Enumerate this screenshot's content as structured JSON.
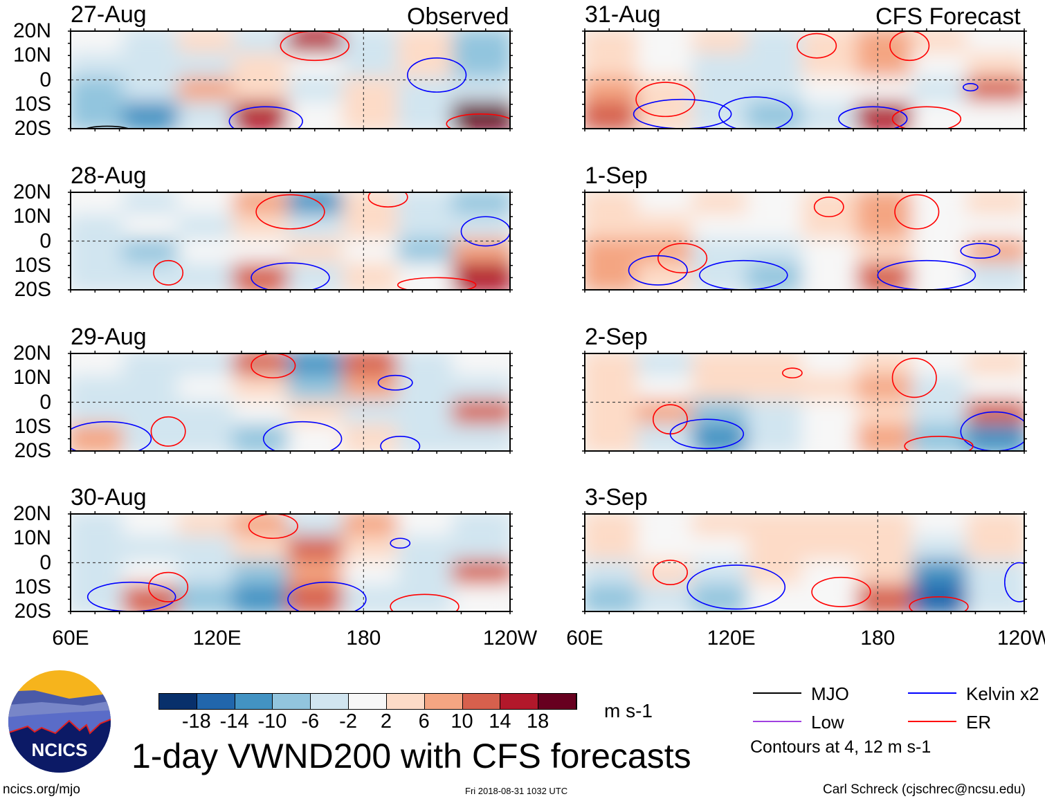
{
  "header": {
    "left_label": "Observed",
    "right_label": "CFS Forecast"
  },
  "chart_data": {
    "type": "heatmap",
    "title": "1-day VWND200 with CFS forecasts",
    "units": "m s-1",
    "lat_ticks": [
      "20N",
      "10N",
      "0",
      "10S",
      "20S"
    ],
    "lon_ticks": [
      "60E",
      "120E",
      "180",
      "120W"
    ],
    "lon_range": [
      60,
      240
    ],
    "lat_range": [
      -20,
      20
    ],
    "grid_lons": [
      71,
      94,
      116,
      139,
      161,
      184,
      206,
      229
    ],
    "grid_lats": [
      15,
      5,
      -5,
      -15
    ],
    "panels": [
      {
        "date": "27-Aug",
        "col": 0,
        "row": 0,
        "values": [
          [
            0,
            -4,
            3,
            -3,
            14,
            -4,
            3,
            -8
          ],
          [
            -3,
            -6,
            -4,
            4,
            0,
            -6,
            2,
            -8
          ],
          [
            -8,
            -6,
            6,
            4,
            -4,
            3,
            -4,
            -6
          ],
          [
            -10,
            -12,
            -4,
            14,
            -2,
            2,
            -4,
            18
          ]
        ],
        "contours": [
          {
            "type": "ER",
            "lon": 160,
            "lat": 14,
            "rlon": 14,
            "rlat": 6
          },
          {
            "type": "Kelvin",
            "lon": 210,
            "lat": 2,
            "rlon": 12,
            "rlat": 7
          },
          {
            "type": "Kelvin",
            "lon": 140,
            "lat": -17,
            "rlon": 15,
            "rlat": 6
          },
          {
            "type": "ER",
            "lon": 228,
            "lat": -18,
            "rlon": 14,
            "rlat": 4
          },
          {
            "type": "MJO",
            "lon": 75,
            "lat": -21,
            "rlon": 10,
            "rlat": 2
          }
        ]
      },
      {
        "date": "28-Aug",
        "col": 0,
        "row": 1,
        "values": [
          [
            -2,
            -3,
            0,
            8,
            -14,
            4,
            -4,
            -8
          ],
          [
            -4,
            -2,
            -3,
            4,
            -6,
            2,
            -4,
            -4
          ],
          [
            -6,
            -8,
            -2,
            0,
            3,
            -2,
            -8,
            6
          ],
          [
            -6,
            -4,
            -4,
            10,
            -4,
            3,
            -2,
            14
          ]
        ],
        "contours": [
          {
            "type": "ER",
            "lon": 150,
            "lat": 12,
            "rlon": 14,
            "rlat": 7
          },
          {
            "type": "ER",
            "lon": 190,
            "lat": 18,
            "rlon": 8,
            "rlat": 4
          },
          {
            "type": "Kelvin",
            "lon": 230,
            "lat": 4,
            "rlon": 10,
            "rlat": 6
          },
          {
            "type": "Kelvin",
            "lon": 150,
            "lat": -15,
            "rlon": 16,
            "rlat": 6
          },
          {
            "type": "ER",
            "lon": 100,
            "lat": -13,
            "rlon": 6,
            "rlat": 5
          },
          {
            "type": "ER",
            "lon": 210,
            "lat": -18,
            "rlon": 16,
            "rlat": 3
          }
        ]
      },
      {
        "date": "29-Aug",
        "col": 0,
        "row": 2,
        "values": [
          [
            -2,
            -4,
            -3,
            10,
            -12,
            10,
            -4,
            -2
          ],
          [
            -3,
            -4,
            -2,
            4,
            -8,
            6,
            -4,
            -4
          ],
          [
            -6,
            -4,
            -6,
            -2,
            4,
            -4,
            -4,
            10
          ],
          [
            8,
            -4,
            -6,
            -8,
            -2,
            2,
            -6,
            -4
          ]
        ],
        "contours": [
          {
            "type": "ER",
            "lon": 143,
            "lat": 15,
            "rlon": 9,
            "rlat": 5
          },
          {
            "type": "Kelvin",
            "lon": 193,
            "lat": 8,
            "rlon": 7,
            "rlat": 3
          },
          {
            "type": "Kelvin",
            "lon": 75,
            "lat": -15,
            "rlon": 18,
            "rlat": 7
          },
          {
            "type": "ER",
            "lon": 100,
            "lat": -12,
            "rlon": 7,
            "rlat": 6
          },
          {
            "type": "Kelvin",
            "lon": 155,
            "lat": -15,
            "rlon": 16,
            "rlat": 7
          },
          {
            "type": "Kelvin",
            "lon": 195,
            "lat": -18,
            "rlon": 8,
            "rlat": 4
          }
        ]
      },
      {
        "date": "30-Aug",
        "col": 0,
        "row": 3,
        "values": [
          [
            -3,
            -2,
            4,
            8,
            -4,
            6,
            -2,
            -3
          ],
          [
            -4,
            -4,
            -4,
            2,
            10,
            2,
            -4,
            -4
          ],
          [
            -6,
            -2,
            -4,
            -8,
            8,
            -2,
            -4,
            10
          ],
          [
            -6,
            10,
            -8,
            -14,
            12,
            -6,
            -4,
            -2
          ]
        ],
        "contours": [
          {
            "type": "ER",
            "lon": 143,
            "lat": 15,
            "rlon": 10,
            "rlat": 5
          },
          {
            "type": "Kelvin",
            "lon": 195,
            "lat": 8,
            "rlon": 4,
            "rlat": 2
          },
          {
            "type": "Kelvin",
            "lon": 85,
            "lat": -14,
            "rlon": 18,
            "rlat": 6
          },
          {
            "type": "ER",
            "lon": 100,
            "lat": -10,
            "rlon": 8,
            "rlat": 6
          },
          {
            "type": "Kelvin",
            "lon": 165,
            "lat": -15,
            "rlon": 16,
            "rlat": 7
          },
          {
            "type": "ER",
            "lon": 205,
            "lat": -18,
            "rlon": 14,
            "rlat": 5
          }
        ]
      },
      {
        "date": "31-Aug",
        "col": 1,
        "row": 0,
        "values": [
          [
            2,
            -2,
            2,
            -4,
            4,
            8,
            4,
            -2
          ],
          [
            4,
            -2,
            -4,
            -4,
            2,
            6,
            -2,
            4
          ],
          [
            6,
            4,
            -6,
            -4,
            -2,
            -2,
            -4,
            12
          ],
          [
            10,
            4,
            -6,
            -10,
            -4,
            14,
            -2,
            -2
          ]
        ],
        "contours": [
          {
            "type": "ER",
            "lon": 155,
            "lat": 14,
            "rlon": 8,
            "rlat": 5
          },
          {
            "type": "ER",
            "lon": 193,
            "lat": 14,
            "rlon": 8,
            "rlat": 6
          },
          {
            "type": "ER",
            "lon": 93,
            "lat": -8,
            "rlon": 12,
            "rlat": 7
          },
          {
            "type": "Kelvin",
            "lon": 100,
            "lat": -14,
            "rlon": 20,
            "rlat": 6
          },
          {
            "type": "Kelvin",
            "lon": 130,
            "lat": -14,
            "rlon": 15,
            "rlat": 7
          },
          {
            "type": "Kelvin",
            "lon": 178,
            "lat": -16,
            "rlon": 14,
            "rlat": 5
          },
          {
            "type": "ER",
            "lon": 200,
            "lat": -16,
            "rlon": 14,
            "rlat": 5
          },
          {
            "type": "Kelvin",
            "lon": 218,
            "lat": -3,
            "rlon": 3,
            "rlat": 1.5
          }
        ]
      },
      {
        "date": "1-Sep",
        "col": 1,
        "row": 1,
        "values": [
          [
            2,
            -2,
            2,
            -2,
            4,
            6,
            -2,
            2
          ],
          [
            2,
            2,
            -2,
            -2,
            2,
            6,
            -2,
            -2
          ],
          [
            6,
            6,
            -4,
            -4,
            -2,
            4,
            -2,
            8
          ],
          [
            8,
            4,
            -6,
            -10,
            -2,
            12,
            -2,
            -6
          ]
        ],
        "contours": [
          {
            "type": "ER",
            "lon": 160,
            "lat": 14,
            "rlon": 6,
            "rlat": 4
          },
          {
            "type": "ER",
            "lon": 196,
            "lat": 12,
            "rlon": 9,
            "rlat": 7
          },
          {
            "type": "ER",
            "lon": 100,
            "lat": -7,
            "rlon": 10,
            "rlat": 6
          },
          {
            "type": "Kelvin",
            "lon": 90,
            "lat": -12,
            "rlon": 12,
            "rlat": 6
          },
          {
            "type": "Kelvin",
            "lon": 125,
            "lat": -14,
            "rlon": 18,
            "rlat": 6
          },
          {
            "type": "Kelvin",
            "lon": 200,
            "lat": -14,
            "rlon": 20,
            "rlat": 6
          },
          {
            "type": "Kelvin",
            "lon": 222,
            "lat": -4,
            "rlon": 8,
            "rlat": 3
          }
        ]
      },
      {
        "date": "2-Sep",
        "col": 1,
        "row": 2,
        "values": [
          [
            2,
            -4,
            2,
            2,
            -2,
            2,
            -2,
            2
          ],
          [
            2,
            -2,
            2,
            2,
            4,
            6,
            -4,
            -2
          ],
          [
            4,
            6,
            -8,
            -4,
            -2,
            2,
            -6,
            10
          ],
          [
            2,
            -4,
            -12,
            -4,
            -2,
            8,
            -8,
            -12
          ]
        ],
        "contours": [
          {
            "type": "ER",
            "lon": 195,
            "lat": 10,
            "rlon": 9,
            "rlat": 8
          },
          {
            "type": "ER",
            "lon": 145,
            "lat": 12,
            "rlon": 4,
            "rlat": 2
          },
          {
            "type": "ER",
            "lon": 95,
            "lat": -7,
            "rlon": 7,
            "rlat": 6
          },
          {
            "type": "Kelvin",
            "lon": 110,
            "lat": -13,
            "rlon": 15,
            "rlat": 6
          },
          {
            "type": "Kelvin",
            "lon": 228,
            "lat": -12,
            "rlon": 14,
            "rlat": 8
          },
          {
            "type": "ER",
            "lon": 205,
            "lat": -18,
            "rlon": 14,
            "rlat": 4
          }
        ]
      },
      {
        "date": "3-Sep",
        "col": 1,
        "row": 3,
        "values": [
          [
            2,
            -2,
            2,
            2,
            2,
            2,
            -2,
            2
          ],
          [
            2,
            -2,
            -2,
            2,
            2,
            2,
            -6,
            2
          ],
          [
            -6,
            4,
            -6,
            2,
            -2,
            2,
            -14,
            -4
          ],
          [
            -10,
            -4,
            -8,
            -2,
            -2,
            10,
            -18,
            -4
          ]
        ],
        "contours": [
          {
            "type": "ER",
            "lon": 95,
            "lat": -4,
            "rlon": 7,
            "rlat": 5
          },
          {
            "type": "Kelvin",
            "lon": 122,
            "lat": -10,
            "rlon": 20,
            "rlat": 9
          },
          {
            "type": "ER",
            "lon": 165,
            "lat": -12,
            "rlon": 12,
            "rlat": 6
          },
          {
            "type": "ER",
            "lon": 205,
            "lat": -18,
            "rlon": 12,
            "rlat": 4
          },
          {
            "type": "Kelvin",
            "lon": 238,
            "lat": -8,
            "rlon": 6,
            "rlat": 8
          }
        ]
      }
    ],
    "colorbar": {
      "ticks": [
        "-18",
        "-14",
        "-10",
        "-6",
        "-2",
        "2",
        "6",
        "10",
        "14",
        "18"
      ],
      "colors": [
        "#08306b",
        "#2166ac",
        "#4393c3",
        "#92c5de",
        "#d1e5f0",
        "#f7f7f7",
        "#fddbc7",
        "#f4a582",
        "#d6604d",
        "#b2182b",
        "#67001f"
      ]
    },
    "legend": [
      {
        "label": "MJO",
        "color": "#000000"
      },
      {
        "label": "Kelvin x2",
        "color": "#0000ff"
      },
      {
        "label": "Low",
        "color": "#a040e0"
      },
      {
        "label": "ER",
        "color": "#ff0000"
      }
    ],
    "contour_note": "Contours at 4, 12 m s-1"
  },
  "footer": {
    "logo_text": "NCICS",
    "url": "ncics.org/mjo",
    "timestamp": "Fri 2018-08-31 1032 UTC",
    "credit": "Carl Schreck (cjschrec@ncsu.edu)"
  }
}
